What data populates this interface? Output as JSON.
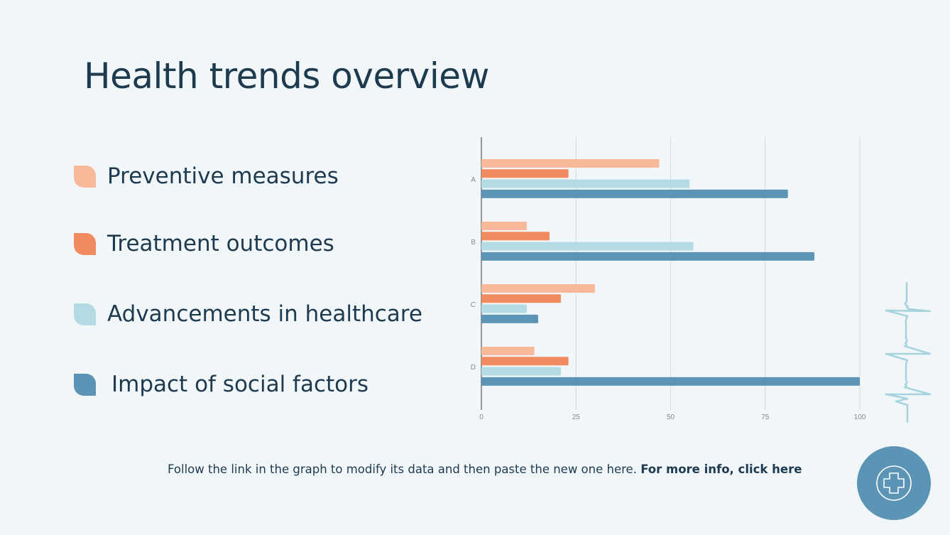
{
  "title": "Health trends overview",
  "legend": [
    {
      "label": "Preventive measures",
      "color": "#f8b99a"
    },
    {
      "label": "Treatment outcomes",
      "color": "#f28a5f"
    },
    {
      "label": "Advancements in healthcare",
      "color": "#b3dbe3"
    },
    {
      "label": "Impact of social factors",
      "color": "#5b94b5"
    }
  ],
  "footer": {
    "text": "Follow the link in the graph to modify its data and then paste the new one here.",
    "link": "For more info, click here"
  },
  "icons": {
    "decoration": "heartbeat-line-icon",
    "badge": "medical-cross-icon"
  },
  "chart_data": {
    "type": "bar",
    "orientation": "horizontal",
    "categories": [
      "A",
      "B",
      "C",
      "D"
    ],
    "series": [
      {
        "name": "Preventive measures",
        "color": "#f8b99a",
        "values": [
          47,
          12,
          30,
          14
        ]
      },
      {
        "name": "Treatment outcomes",
        "color": "#f28a5f",
        "values": [
          23,
          18,
          21,
          23
        ]
      },
      {
        "name": "Advancements in healthcare",
        "color": "#b3dbe3",
        "values": [
          55,
          56,
          12,
          21
        ]
      },
      {
        "name": "Impact of social factors",
        "color": "#5b94b5",
        "values": [
          81,
          88,
          15,
          100
        ]
      }
    ],
    "xlim": [
      0,
      100
    ],
    "xticks": [
      "0",
      "25",
      "50",
      "75",
      "100"
    ],
    "grid": true,
    "legend_position": "left"
  }
}
